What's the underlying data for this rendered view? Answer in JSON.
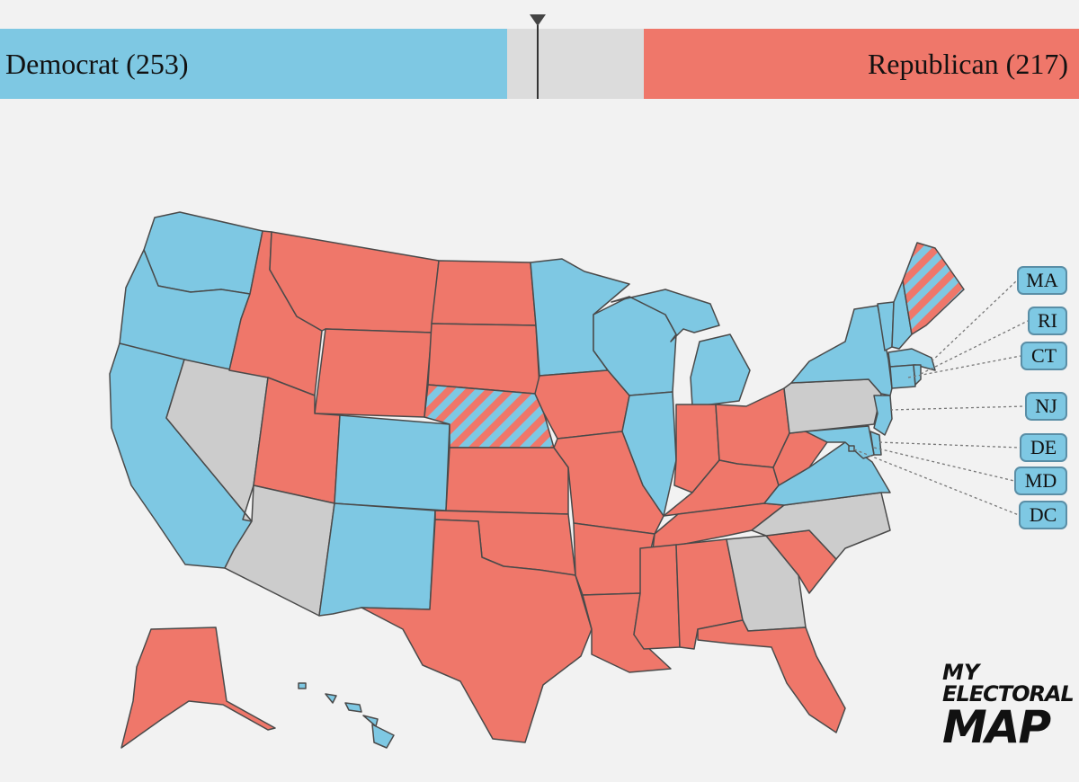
{
  "topbar": {
    "democrat_label": "Democrat (253)",
    "republican_label": "Republican (217)",
    "democrat_votes": 253,
    "republican_votes": 217,
    "tossup_votes": 68,
    "total_votes": 538,
    "needed_to_win": 270
  },
  "colors": {
    "democrat": "#7ec8e3",
    "republican": "#ef776a",
    "tossup": "#cccccc",
    "background": "#f2f2f2",
    "border": "#4a4a4a"
  },
  "states": {
    "democrat": [
      "WA",
      "OR",
      "CA",
      "CO",
      "NM",
      "MN",
      "WI",
      "IL",
      "MI",
      "VA",
      "NY",
      "VT",
      "NH",
      "MA",
      "RI",
      "CT",
      "NJ",
      "DE",
      "MD",
      "DC",
      "HI"
    ],
    "republican": [
      "MT",
      "ID",
      "WY",
      "ND",
      "SD",
      "UT",
      "KS",
      "OK",
      "TX",
      "MO",
      "AR",
      "LA",
      "IA",
      "IN",
      "OH",
      "KY",
      "TN",
      "MS",
      "AL",
      "FL",
      "SC",
      "WV",
      "AK"
    ],
    "tossup": [
      "NV",
      "AZ",
      "PA",
      "GA",
      "NC"
    ],
    "split": [
      "NE",
      "ME"
    ]
  },
  "small_states": [
    "MA",
    "RI",
    "CT",
    "NJ",
    "DE",
    "MD",
    "DC"
  ],
  "logo": {
    "line1": "MY",
    "line2": "ELECTORAL",
    "line3": "MAP"
  }
}
